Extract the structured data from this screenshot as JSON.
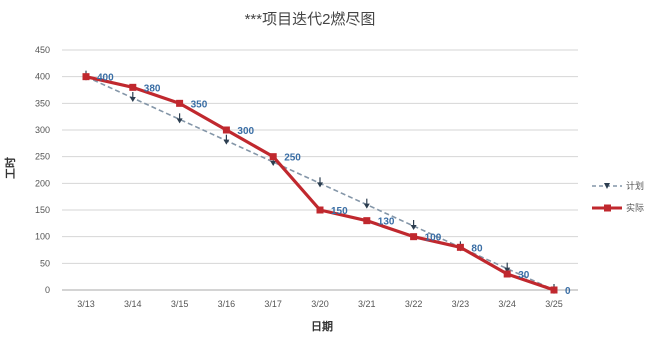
{
  "chart_data": {
    "type": "line",
    "title": "***项目迭代2燃尽图",
    "xlabel": "日期",
    "ylabel": "工时",
    "categories": [
      "3/13",
      "3/14",
      "3/15",
      "3/16",
      "3/17",
      "3/20",
      "3/21",
      "3/22",
      "3/23",
      "3/24",
      "3/25"
    ],
    "ylim": [
      0,
      450
    ],
    "yticks": [
      0,
      50,
      100,
      150,
      200,
      250,
      300,
      350,
      400,
      450
    ],
    "grid": true,
    "legend_position": "right",
    "series": [
      {
        "name": "计划",
        "style": "dashed-arrow",
        "color": "#8496a8",
        "values": [
          400,
          360,
          320,
          280,
          240,
          200,
          160,
          120,
          80,
          40,
          0
        ]
      },
      {
        "name": "实际",
        "style": "solid-square",
        "color": "#c0282e",
        "values": [
          400,
          380,
          350,
          300,
          250,
          150,
          130,
          100,
          80,
          30,
          0
        ],
        "data_labels": [
          "400",
          "380",
          "350",
          "300",
          "250",
          "150",
          "130",
          "100",
          "80",
          "30",
          "0"
        ]
      }
    ]
  }
}
